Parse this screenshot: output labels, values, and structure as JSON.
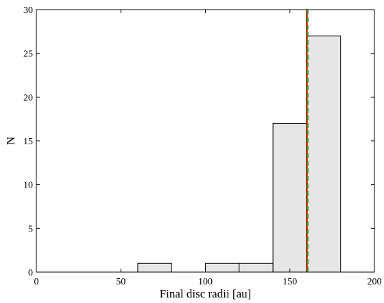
{
  "chart_data": {
    "type": "bar",
    "title": "",
    "xlabel": "Final disc radii [au]",
    "ylabel": "N",
    "xlim": [
      0,
      200
    ],
    "ylim": [
      0,
      30
    ],
    "x_ticks": [
      0,
      50,
      100,
      150,
      200
    ],
    "y_ticks": [
      0,
      5,
      10,
      15,
      20,
      25,
      30
    ],
    "bins": [
      {
        "start": 60,
        "end": 80,
        "count": 1
      },
      {
        "start": 100,
        "end": 120,
        "count": 1
      },
      {
        "start": 120,
        "end": 140,
        "count": 1
      },
      {
        "start": 140,
        "end": 160,
        "count": 17
      },
      {
        "start": 160,
        "end": 180,
        "count": 27
      }
    ],
    "vertical_lines": [
      {
        "x": 160,
        "style": "solid",
        "color": "#dd0000"
      },
      {
        "x": 160.5,
        "style": "dashed",
        "color": "#22a022"
      }
    ],
    "bar_fill": "#e6e6e6",
    "bar_edge": "#000000",
    "grid": false,
    "legend": "none"
  }
}
